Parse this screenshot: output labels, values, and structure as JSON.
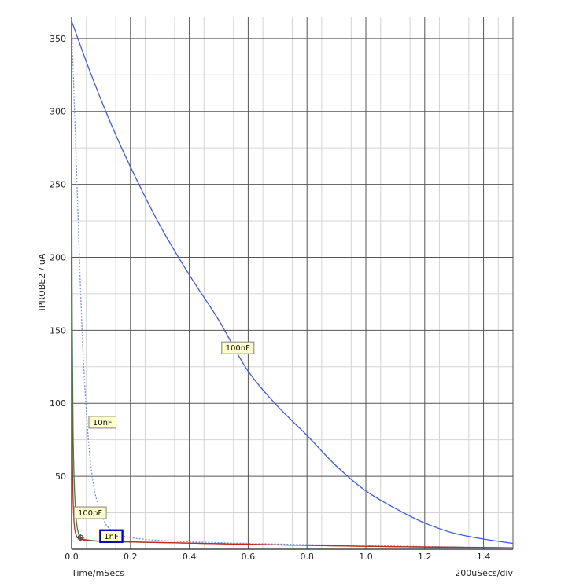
{
  "chart_data": {
    "type": "line",
    "title": "",
    "xlabel": "Time/mSecs",
    "ylabel": "IPROBE2 / uA",
    "x_scale_note": "200uSecs/div",
    "xlim": [
      0,
      1.5
    ],
    "ylim": [
      0,
      365
    ],
    "x_ticks": [
      "0.0",
      "0.2",
      "0.4",
      "0.6",
      "0.8",
      "1.0",
      "1.2",
      "1.4"
    ],
    "y_ticks": [
      "50",
      "100",
      "150",
      "200",
      "250",
      "300",
      "350"
    ],
    "grid": true,
    "series": [
      {
        "name": "100nF",
        "color": "#3b5bdb",
        "dash": "solid",
        "x": [
          0,
          0.05,
          0.1,
          0.15,
          0.2,
          0.3,
          0.4,
          0.5,
          0.6,
          0.7,
          0.8,
          0.9,
          1.0,
          1.1,
          1.2,
          1.3,
          1.4,
          1.5
        ],
        "y": [
          362,
          334,
          308,
          284,
          262,
          222,
          188,
          157,
          122,
          98,
          78,
          57,
          40,
          28,
          18,
          11,
          7,
          4
        ]
      },
      {
        "name": "10nF",
        "color": "#7b8fe6",
        "dash": "dotted",
        "x": [
          0,
          0.005,
          0.01,
          0.02,
          0.03,
          0.04,
          0.05,
          0.06,
          0.07,
          0.08,
          0.1,
          0.12,
          0.15,
          0.2,
          0.3,
          0.5,
          1.0,
          1.5
        ],
        "y": [
          360,
          330,
          300,
          240,
          180,
          130,
          95,
          68,
          50,
          38,
          25,
          16,
          11,
          8,
          6,
          4.5,
          2.5,
          1
        ]
      },
      {
        "name": "100pF",
        "color": "#2e8b3a",
        "dash": "solid",
        "x": [
          0,
          0.002,
          0.005,
          0.01,
          0.015,
          0.02,
          0.025,
          0.03,
          0.05,
          0.1,
          0.2,
          0.5,
          1.0,
          1.5
        ],
        "y": [
          300,
          160,
          80,
          40,
          22,
          14,
          10,
          8,
          6.5,
          5.5,
          5,
          3.8,
          2,
          1
        ]
      },
      {
        "name": "1nF",
        "color": "#cc2222",
        "dash": "solid",
        "x": [
          0,
          0.001,
          0.003,
          0.006,
          0.01,
          0.015,
          0.02,
          0.03,
          0.05,
          0.1,
          0.2,
          0.5,
          1.0,
          1.5
        ],
        "y": [
          200,
          120,
          60,
          28,
          15,
          10,
          8,
          7,
          6,
          5.5,
          5,
          3.8,
          2,
          1
        ]
      }
    ],
    "annotations": [
      {
        "text": "100nF",
        "x": 0.565,
        "y": 138,
        "style": "label",
        "bg": "#ffffcc",
        "border": "#808080"
      },
      {
        "text": "10nF",
        "x": 0.105,
        "y": 87,
        "style": "label",
        "bg": "#ffffcc",
        "border": "#808080"
      },
      {
        "text": "100pF",
        "x": 0.063,
        "y": 25,
        "style": "label",
        "bg": "#ffffcc",
        "border": "#808080"
      },
      {
        "text": "1nF",
        "x": 0.135,
        "y": 9,
        "style": "selected",
        "bg": "#ffffcc",
        "border": "#0000cc"
      }
    ],
    "marker": {
      "x": 0.03,
      "y": 8,
      "icon": "crosshair-marker"
    }
  }
}
